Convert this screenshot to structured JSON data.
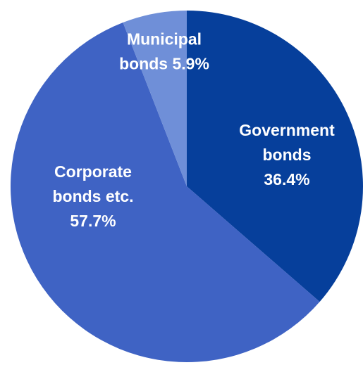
{
  "chart_data": {
    "type": "pie",
    "start_angle_deg": 0,
    "direction": "clockwise",
    "slices": [
      {
        "label_lines": [
          "Government",
          "bonds",
          "36.4%"
        ],
        "category": "Government bonds",
        "value": 36.4,
        "color": "#063f9b"
      },
      {
        "label_lines": [
          "Corporate",
          "bonds etc.",
          "57.7%"
        ],
        "category": "Corporate bonds etc.",
        "value": 57.7,
        "color": "#3f63c4"
      },
      {
        "label_lines": [
          "Municipal",
          "bonds 5.9%"
        ],
        "category": "Municipal bonds",
        "value": 5.9,
        "color": "#6f8fd8"
      }
    ]
  }
}
